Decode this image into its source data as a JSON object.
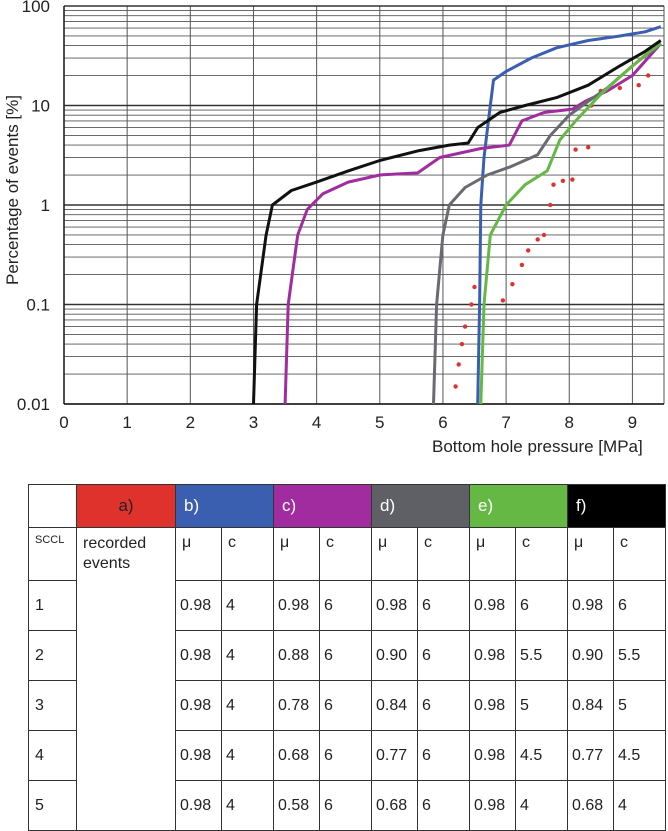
{
  "chart_data": {
    "type": "scatter",
    "xlabel": "Bottom hole pressure [MPa]",
    "ylabel": "Percentage of events [%]",
    "xlim": [
      0,
      9.5
    ],
    "ylim": [
      0.01,
      100
    ],
    "yscale": "log",
    "x_ticks": [
      "0",
      "1",
      "2",
      "3",
      "4",
      "5",
      "6",
      "7",
      "8",
      "9"
    ],
    "y_ticks": [
      "0.01",
      "0.1",
      "1",
      "10",
      "100"
    ],
    "grid": true,
    "series": [
      {
        "key": "a",
        "color": "#e0322c",
        "style": "dots",
        "points": [
          [
            6.2,
            0.015
          ],
          [
            6.25,
            0.025
          ],
          [
            6.3,
            0.04
          ],
          [
            6.35,
            0.06
          ],
          [
            6.45,
            0.1
          ],
          [
            6.5,
            0.15
          ],
          [
            6.95,
            0.11
          ],
          [
            7.1,
            0.16
          ],
          [
            7.25,
            0.25
          ],
          [
            7.35,
            0.35
          ],
          [
            7.5,
            0.45
          ],
          [
            7.6,
            0.5
          ],
          [
            7.7,
            1.0
          ],
          [
            7.75,
            1.6
          ],
          [
            7.9,
            1.75
          ],
          [
            8.05,
            1.8
          ],
          [
            8.1,
            3.6
          ],
          [
            8.3,
            3.8
          ],
          [
            8.35,
            10
          ],
          [
            8.5,
            14
          ],
          [
            8.8,
            15
          ],
          [
            9.1,
            16
          ],
          [
            9.25,
            20
          ]
        ]
      },
      {
        "key": "b",
        "color": "#3a5eb0",
        "style": "line",
        "points": [
          [
            6.55,
            0.01
          ],
          [
            6.58,
            0.1
          ],
          [
            6.6,
            1.0
          ],
          [
            6.65,
            3.0
          ],
          [
            6.72,
            7.0
          ],
          [
            6.8,
            18
          ],
          [
            7.0,
            22
          ],
          [
            7.4,
            30
          ],
          [
            7.8,
            38
          ],
          [
            8.3,
            45
          ],
          [
            8.8,
            50
          ],
          [
            9.2,
            55
          ],
          [
            9.45,
            62
          ]
        ]
      },
      {
        "key": "c",
        "color": "#a02ca0",
        "style": "line",
        "points": [
          [
            3.5,
            0.01
          ],
          [
            3.55,
            0.1
          ],
          [
            3.7,
            0.5
          ],
          [
            3.85,
            0.9
          ],
          [
            4.1,
            1.3
          ],
          [
            4.5,
            1.7
          ],
          [
            5.0,
            2.0
          ],
          [
            5.6,
            2.1
          ],
          [
            5.95,
            3.0
          ],
          [
            6.6,
            3.7
          ],
          [
            7.05,
            4.0
          ],
          [
            7.25,
            7.0
          ],
          [
            7.6,
            8.5
          ],
          [
            8.05,
            9.2
          ],
          [
            8.25,
            11
          ],
          [
            8.6,
            14
          ],
          [
            9.0,
            20
          ],
          [
            9.45,
            42
          ]
        ]
      },
      {
        "key": "d",
        "color": "#6a6b70",
        "style": "line",
        "points": [
          [
            5.85,
            0.01
          ],
          [
            5.9,
            0.1
          ],
          [
            6.0,
            0.5
          ],
          [
            6.1,
            1.0
          ],
          [
            6.35,
            1.5
          ],
          [
            6.7,
            2.0
          ],
          [
            7.05,
            2.4
          ],
          [
            7.5,
            3.2
          ],
          [
            7.7,
            5.0
          ],
          [
            8.0,
            8.0
          ],
          [
            8.3,
            11
          ],
          [
            8.6,
            15
          ],
          [
            9.0,
            25
          ],
          [
            9.45,
            42
          ]
        ]
      },
      {
        "key": "e",
        "color": "#66b845",
        "style": "line",
        "points": [
          [
            6.6,
            0.01
          ],
          [
            6.65,
            0.1
          ],
          [
            6.75,
            0.5
          ],
          [
            7.0,
            1.0
          ],
          [
            7.3,
            1.6
          ],
          [
            7.65,
            2.2
          ],
          [
            7.85,
            4.5
          ],
          [
            8.1,
            7.0
          ],
          [
            8.5,
            13
          ],
          [
            8.9,
            22
          ],
          [
            9.2,
            32
          ],
          [
            9.45,
            42
          ]
        ]
      },
      {
        "key": "f",
        "color": "#111111",
        "style": "line",
        "points": [
          [
            3.0,
            0.01
          ],
          [
            3.05,
            0.1
          ],
          [
            3.2,
            0.5
          ],
          [
            3.3,
            1.0
          ],
          [
            3.6,
            1.4
          ],
          [
            4.0,
            1.7
          ],
          [
            4.5,
            2.2
          ],
          [
            5.0,
            2.8
          ],
          [
            5.6,
            3.5
          ],
          [
            6.1,
            4.0
          ],
          [
            6.4,
            4.2
          ],
          [
            6.55,
            6.0
          ],
          [
            6.9,
            8.5
          ],
          [
            7.3,
            10
          ],
          [
            7.8,
            12
          ],
          [
            8.3,
            16
          ],
          [
            8.8,
            25
          ],
          [
            9.2,
            35
          ],
          [
            9.45,
            45
          ]
        ]
      }
    ]
  },
  "table": {
    "headers": [
      {
        "label": "a)",
        "color": "#e0322c",
        "text_color": "#222222"
      },
      {
        "label": "b)",
        "color": "#3a5eb0",
        "text_color": "#ffffff"
      },
      {
        "label": "c)",
        "color": "#a02ca0",
        "text_color": "#ffffff"
      },
      {
        "label": "d)",
        "color": "#5f6066",
        "text_color": "#ffffff"
      },
      {
        "label": "e)",
        "color": "#66b845",
        "text_color": "#ffffff"
      },
      {
        "label": "f)",
        "color": "#000000",
        "text_color": "#ffffff"
      }
    ],
    "sccl_label": "SCCL",
    "recorded_line1": "recorded",
    "recorded_line2": "events",
    "mu": "μ",
    "c": "c",
    "rows": [
      {
        "sccl": "1",
        "b": [
          "0.98",
          "4"
        ],
        "c": [
          "0.98",
          "6"
        ],
        "d": [
          "0.98",
          "6"
        ],
        "e": [
          "0.98",
          "6"
        ],
        "f": [
          "0.98",
          "6"
        ]
      },
      {
        "sccl": "2",
        "b": [
          "0.98",
          "4"
        ],
        "c": [
          "0.88",
          "6"
        ],
        "d": [
          "0.90",
          "6"
        ],
        "e": [
          "0.98",
          "5.5"
        ],
        "f": [
          "0.90",
          "5.5"
        ]
      },
      {
        "sccl": "3",
        "b": [
          "0.98",
          "4"
        ],
        "c": [
          "0.78",
          "6"
        ],
        "d": [
          "0.84",
          "6"
        ],
        "e": [
          "0.98",
          "5"
        ],
        "f": [
          "0.84",
          "5"
        ]
      },
      {
        "sccl": "4",
        "b": [
          "0.98",
          "4"
        ],
        "c": [
          "0.68",
          "6"
        ],
        "d": [
          "0.77",
          "6"
        ],
        "e": [
          "0.98",
          "4.5"
        ],
        "f": [
          "0.77",
          "4.5"
        ]
      },
      {
        "sccl": "5",
        "b": [
          "0.98",
          "4"
        ],
        "c": [
          "0.58",
          "6"
        ],
        "d": [
          "0.68",
          "6"
        ],
        "e": [
          "0.98",
          "4"
        ],
        "f": [
          "0.68",
          "4"
        ]
      }
    ]
  }
}
